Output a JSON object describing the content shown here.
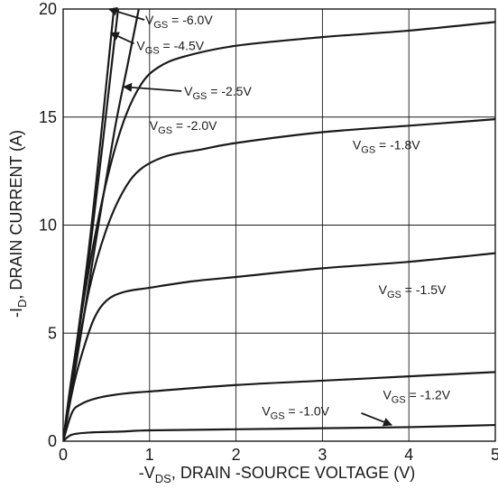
{
  "chart_data": {
    "type": "line",
    "xlabel_main": "-V",
    "xlabel_sub": "DS",
    "xlabel_rest": ", DRAIN -SOURCE VOLTAGE (V)",
    "ylabel_main": "-I",
    "ylabel_sub": "D",
    "ylabel_rest": ", DRAIN CURRENT (A)",
    "xlim": [
      0,
      5
    ],
    "ylim": [
      0,
      20
    ],
    "x_ticks": [
      "0",
      "1",
      "2",
      "3",
      "4",
      "5"
    ],
    "y_ticks": [
      "0",
      "5",
      "10",
      "15",
      "20"
    ],
    "grid": true,
    "series": [
      {
        "name": "-6.0V",
        "points": [
          [
            0,
            0
          ],
          [
            0.3,
            9
          ],
          [
            0.6,
            20.5
          ]
        ]
      },
      {
        "name": "-4.5V",
        "points": [
          [
            0,
            0
          ],
          [
            0.3,
            8.5
          ],
          [
            0.65,
            20.5
          ]
        ]
      },
      {
        "name": "-2.5V",
        "points": [
          [
            0,
            0
          ],
          [
            0.2,
            4.8
          ],
          [
            0.4,
            9.8
          ],
          [
            0.6,
            14.5
          ],
          [
            0.75,
            17.5
          ],
          [
            0.9,
            20.5
          ]
        ]
      },
      {
        "name": "-2.0V",
        "points": [
          [
            0,
            0
          ],
          [
            0.1,
            3
          ],
          [
            0.3,
            8
          ],
          [
            0.5,
            12
          ],
          [
            0.7,
            14.8
          ],
          [
            0.9,
            16.5
          ],
          [
            1.1,
            17.3
          ],
          [
            1.4,
            17.8
          ],
          [
            2,
            18.3
          ],
          [
            3,
            18.7
          ],
          [
            4,
            19
          ],
          [
            5,
            19.4
          ]
        ]
      },
      {
        "name": "-1.8V",
        "points": [
          [
            0,
            0
          ],
          [
            0.1,
            2.6
          ],
          [
            0.3,
            7
          ],
          [
            0.5,
            9.8
          ],
          [
            0.7,
            11.6
          ],
          [
            0.9,
            12.6
          ],
          [
            1.2,
            13.2
          ],
          [
            1.6,
            13.5
          ],
          [
            2,
            13.8
          ],
          [
            3,
            14.3
          ],
          [
            4,
            14.6
          ],
          [
            5,
            14.9
          ]
        ]
      },
      {
        "name": "-1.5V",
        "points": [
          [
            0,
            0
          ],
          [
            0.1,
            2.2
          ],
          [
            0.2,
            3.8
          ],
          [
            0.35,
            5.6
          ],
          [
            0.5,
            6.5
          ],
          [
            0.7,
            6.9
          ],
          [
            1,
            7.1
          ],
          [
            1.5,
            7.4
          ],
          [
            2,
            7.6
          ],
          [
            3,
            8
          ],
          [
            4,
            8.3
          ],
          [
            5,
            8.7
          ]
        ]
      },
      {
        "name": "-1.2V",
        "points": [
          [
            0,
            0
          ],
          [
            0.1,
            1.3
          ],
          [
            0.2,
            1.7
          ],
          [
            0.4,
            2
          ],
          [
            0.7,
            2.2
          ],
          [
            1,
            2.3
          ],
          [
            2,
            2.6
          ],
          [
            3,
            2.8
          ],
          [
            4,
            3
          ],
          [
            5,
            3.2
          ]
        ]
      },
      {
        "name": "-1.0V",
        "points": [
          [
            0,
            0
          ],
          [
            0.1,
            0.3
          ],
          [
            0.3,
            0.4
          ],
          [
            0.7,
            0.45
          ],
          [
            1,
            0.5
          ],
          [
            2,
            0.55
          ],
          [
            3,
            0.6
          ],
          [
            4,
            0.65
          ],
          [
            5,
            0.75
          ]
        ]
      }
    ],
    "annotations": [
      {
        "vgs": "-6.0V",
        "x": 0.95,
        "y": 19.3,
        "arrow_from": [
          0.94,
          19.5
        ],
        "arrow_to": [
          0.53,
          20.0
        ]
      },
      {
        "vgs": "-4.5V",
        "x": 0.85,
        "y": 18.1,
        "arrow_from": [
          0.82,
          18.4
        ],
        "arrow_to": [
          0.55,
          18.9
        ]
      },
      {
        "vgs": "-2.5V",
        "x": 1.4,
        "y": 16.0,
        "arrow_from": [
          1.37,
          16.2
        ],
        "arrow_to": [
          0.7,
          16.4
        ]
      },
      {
        "vgs": "-2.0V",
        "x": 1.0,
        "y": 14.4
      },
      {
        "vgs": "-1.8V",
        "x": 3.35,
        "y": 13.5
      },
      {
        "vgs": "-1.5V",
        "x": 3.65,
        "y": 6.8
      },
      {
        "vgs": "-1.2V",
        "x": 3.7,
        "y": 1.95
      },
      {
        "vgs": "-1.0V",
        "x": 2.3,
        "y": 1.2,
        "arrow_from": [
          3.45,
          1.3
        ],
        "arrow_to": [
          3.8,
          0.75
        ]
      }
    ],
    "vgs_prefix": "V",
    "vgs_sub": "GS",
    "vgs_eq": " = "
  }
}
